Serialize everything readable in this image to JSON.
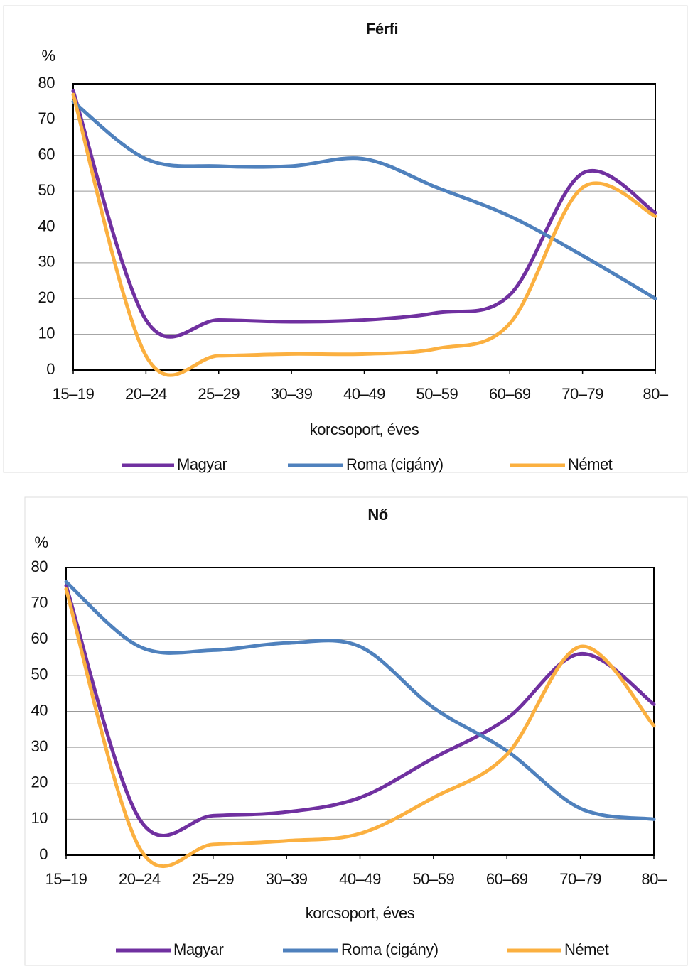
{
  "chart_data": [
    {
      "type": "line",
      "title": "Férfi",
      "y_label": "%",
      "x_label": "korcsoport, éves",
      "categories": [
        "15–19",
        "20–24",
        "25–29",
        "30–39",
        "40–49",
        "50–59",
        "60–69",
        "70–79",
        "80–"
      ],
      "series": [
        {
          "name": "Magyar",
          "color": "#7030a0",
          "values": [
            78,
            14,
            14,
            13.5,
            14,
            16,
            21,
            55,
            44
          ]
        },
        {
          "name": "Roma (cigány)",
          "color": "#4f81bd",
          "values": [
            75,
            59,
            57,
            57,
            59,
            51,
            43,
            32,
            20
          ]
        },
        {
          "name": "Német",
          "color": "#fbb040",
          "values": [
            77,
            4,
            4,
            4.5,
            4.5,
            6,
            13,
            51,
            43
          ]
        }
      ],
      "ylim": [
        0,
        80
      ],
      "yticks": [
        0,
        10,
        20,
        30,
        40,
        50,
        60,
        70,
        80
      ],
      "grid": true
    },
    {
      "type": "line",
      "title": "Nő",
      "y_label": "%",
      "x_label": "korcsoport, éves",
      "categories": [
        "15–19",
        "20–24",
        "25–29",
        "30–39",
        "40–49",
        "50–59",
        "60–69",
        "70–79",
        "80–"
      ],
      "series": [
        {
          "name": "Magyar",
          "color": "#7030a0",
          "values": [
            75,
            10,
            11,
            12,
            16,
            27,
            38,
            56,
            42
          ]
        },
        {
          "name": "Roma (cigány)",
          "color": "#4f81bd",
          "values": [
            76,
            58,
            57,
            59,
            58,
            41,
            29,
            13,
            10
          ]
        },
        {
          "name": "Német",
          "color": "#fbb040",
          "values": [
            74,
            2,
            3,
            4,
            6,
            16,
            28,
            58,
            36
          ]
        }
      ],
      "ylim": [
        0,
        80
      ],
      "yticks": [
        0,
        10,
        20,
        30,
        40,
        50,
        60,
        70,
        80
      ],
      "grid": true
    }
  ]
}
